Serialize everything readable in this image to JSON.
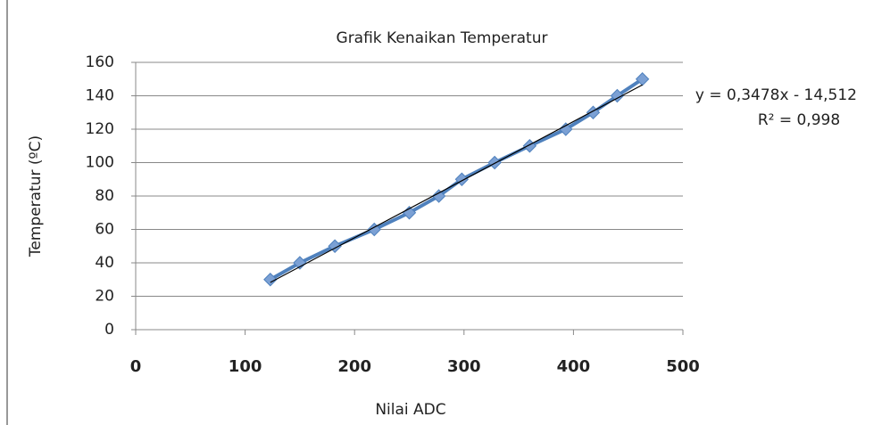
{
  "chart_data": {
    "type": "scatter-line",
    "title": "Grafik Kenaikan Temperatur",
    "x_label": "Nilai ADC",
    "y_label": "Temperatur (ºC)",
    "x": [
      123,
      150,
      182,
      218,
      250,
      277,
      298,
      328,
      360,
      393,
      418,
      440,
      463
    ],
    "values": [
      30,
      40,
      50,
      60,
      70,
      80,
      90,
      100,
      110,
      120,
      130,
      140,
      150
    ],
    "color": "#4f81bd",
    "marker_color": "#7ba0d4",
    "xlim": [
      0,
      500
    ],
    "xticks": [
      0,
      100,
      200,
      300,
      400,
      500
    ],
    "ylim": [
      0,
      160
    ],
    "yticks": [
      0,
      20,
      40,
      60,
      80,
      100,
      120,
      140,
      160
    ],
    "grid": true,
    "trendline": {
      "slope": 0.3478,
      "intercept": -14.512,
      "color": "#000000",
      "equation": "y = 0,3478x - 14,512",
      "r2": "R² = 0,998"
    }
  }
}
